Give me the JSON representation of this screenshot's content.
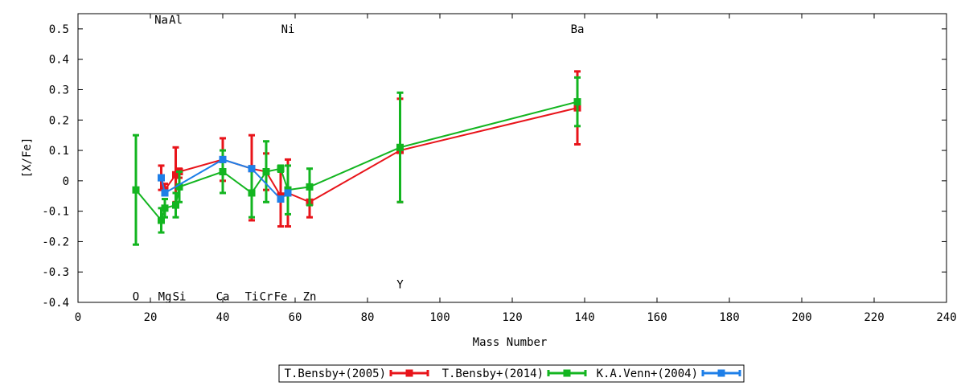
{
  "chart_data": {
    "type": "line-with-error-bars",
    "xlabel": "Mass Number",
    "ylabel": "[X/Fe]",
    "xlim": [
      0,
      240
    ],
    "ylim": [
      -0.4,
      0.55
    ],
    "xticks": [
      0,
      20,
      40,
      60,
      80,
      100,
      120,
      140,
      160,
      180,
      200,
      220,
      240
    ],
    "yticks": [
      -0.4,
      -0.3,
      -0.2,
      -0.1,
      0,
      0.1,
      0.2,
      0.3,
      0.4,
      0.5
    ],
    "grid": false,
    "legend_position": "bottom-center",
    "element_labels": [
      {
        "text": "O",
        "x": 16,
        "y": -0.38
      },
      {
        "text": "Na",
        "x": 23,
        "y": 0.53
      },
      {
        "text": "Mg",
        "x": 24,
        "y": -0.38
      },
      {
        "text": "Al",
        "x": 27,
        "y": 0.53
      },
      {
        "text": "Si",
        "x": 28,
        "y": -0.38
      },
      {
        "text": "Ca",
        "x": 40,
        "y": -0.38
      },
      {
        "text": "Ti",
        "x": 48,
        "y": -0.38
      },
      {
        "text": "Cr",
        "x": 52,
        "y": -0.38
      },
      {
        "text": "Fe",
        "x": 56,
        "y": -0.38
      },
      {
        "text": "Ni",
        "x": 58,
        "y": 0.5
      },
      {
        "text": "Zn",
        "x": 64,
        "y": -0.38
      },
      {
        "text": "Y",
        "x": 89,
        "y": -0.34
      },
      {
        "text": "Ba",
        "x": 138,
        "y": 0.5
      }
    ],
    "series": [
      {
        "name": "T.Bensby+(2005)",
        "color": "#e8141a",
        "points": [
          {
            "x": 23,
            "y": 0.01,
            "err_low": -0.03,
            "err_high": 0.05
          },
          {
            "x": 24,
            "y": -0.03,
            "err_low": -0.04,
            "err_high": -0.01
          },
          {
            "x": 27,
            "y": 0.02,
            "err_low": -0.07,
            "err_high": 0.11
          },
          {
            "x": 28,
            "y": 0.03,
            "err_low": 0.01,
            "err_high": 0.04
          },
          {
            "x": 40,
            "y": 0.07,
            "err_low": 0.0,
            "err_high": 0.14
          },
          {
            "x": 48,
            "y": 0.04,
            "err_low": -0.13,
            "err_high": 0.15
          },
          {
            "x": 52,
            "y": 0.03,
            "err_low": -0.03,
            "err_high": 0.09
          },
          {
            "x": 56,
            "y": -0.05,
            "err_low": -0.15,
            "err_high": 0.04
          },
          {
            "x": 58,
            "y": -0.04,
            "err_low": -0.15,
            "err_high": 0.07
          },
          {
            "x": 64,
            "y": -0.07,
            "err_low": -0.12,
            "err_high": -0.02
          },
          {
            "x": 89,
            "y": 0.1,
            "err_low": -0.07,
            "err_high": 0.27
          },
          {
            "x": 138,
            "y": 0.24,
            "err_low": 0.12,
            "err_high": 0.36
          }
        ]
      },
      {
        "name": "T.Bensby+(2014)",
        "color": "#13b520",
        "points": [
          {
            "x": 16,
            "y": -0.03,
            "err_low": -0.21,
            "err_high": 0.15
          },
          {
            "x": 23,
            "y": -0.13,
            "err_low": -0.17,
            "err_high": -0.09
          },
          {
            "x": 24,
            "y": -0.09,
            "err_low": -0.12,
            "err_high": -0.06
          },
          {
            "x": 27,
            "y": -0.08,
            "err_low": -0.12,
            "err_high": -0.04
          },
          {
            "x": 28,
            "y": -0.02,
            "err_low": -0.07,
            "err_high": 0.03
          },
          {
            "x": 40,
            "y": 0.03,
            "err_low": -0.04,
            "err_high": 0.1
          },
          {
            "x": 48,
            "y": -0.04,
            "err_low": -0.12,
            "err_high": 0.04
          },
          {
            "x": 52,
            "y": 0.03,
            "err_low": -0.07,
            "err_high": 0.13
          },
          {
            "x": 56,
            "y": 0.04,
            "err_low": 0.03,
            "err_high": 0.05
          },
          {
            "x": 58,
            "y": -0.03,
            "err_low": -0.11,
            "err_high": 0.05
          },
          {
            "x": 64,
            "y": -0.02,
            "err_low": -0.08,
            "err_high": 0.04
          },
          {
            "x": 89,
            "y": 0.11,
            "err_low": -0.07,
            "err_high": 0.29
          },
          {
            "x": 138,
            "y": 0.26,
            "err_low": 0.18,
            "err_high": 0.34
          }
        ]
      },
      {
        "name": "K.A.Venn+(2004)",
        "color": "#1e7fe8",
        "points": [
          {
            "x": 23,
            "y": 0.01
          },
          {
            "x": 24,
            "y": -0.04
          },
          {
            "x": 40,
            "y": 0.07
          },
          {
            "x": 48,
            "y": 0.04
          },
          {
            "x": 56,
            "y": -0.06
          },
          {
            "x": 58,
            "y": -0.04
          }
        ]
      }
    ]
  }
}
